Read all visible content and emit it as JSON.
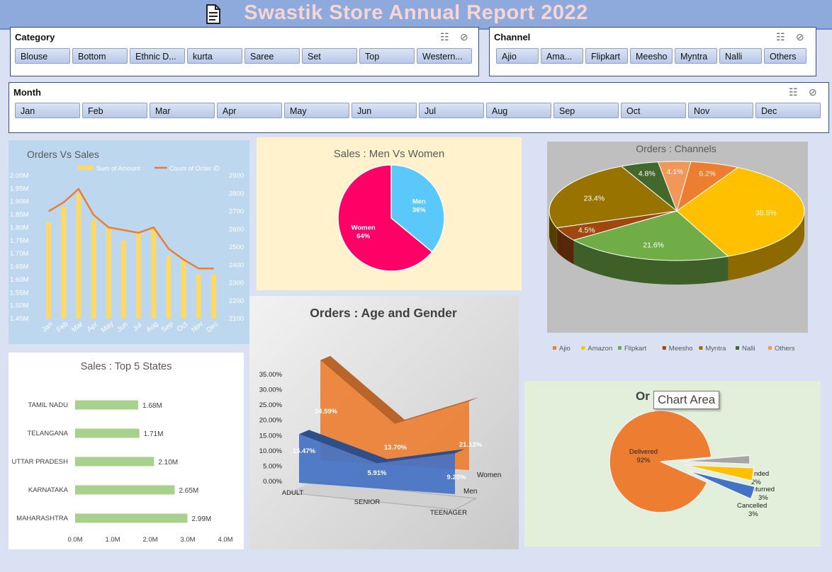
{
  "header": {
    "title": "Swastik Store Annual Report 2022"
  },
  "slicers": {
    "category": {
      "label": "Category",
      "items": [
        "Blouse",
        "Bottom",
        "Ethnic D...",
        "kurta",
        "Saree",
        "Set",
        "Top",
        "Western..."
      ]
    },
    "channel": {
      "label": "Channel",
      "items": [
        "Ajio",
        "Ama...",
        "Flipkart",
        "Meesho",
        "Myntra",
        "Nalli",
        "Others"
      ]
    },
    "month": {
      "label": "Month",
      "items": [
        "Jan",
        "Feb",
        "Mar",
        "Apr",
        "May",
        "Jun",
        "Jul",
        "Aug",
        "Sep",
        "Oct",
        "Nov",
        "Dec"
      ]
    }
  },
  "tooltip": "Chart Area",
  "chart_data": [
    {
      "type": "bar",
      "title": "Orders Vs  Sales",
      "categories": [
        "Jan",
        "Feb",
        "Mar",
        "Apr",
        "May",
        "Jun",
        "Jul",
        "Aug",
        "Sep",
        "Oct",
        "Nov",
        "Dec"
      ],
      "series": [
        {
          "name": "Sum of Amount",
          "kind": "bar",
          "axis": "left",
          "values": [
            1.82,
            1.88,
            1.93,
            1.83,
            1.8,
            1.75,
            1.78,
            1.8,
            1.69,
            1.67,
            1.62,
            1.62
          ],
          "color": "#ffd966"
        },
        {
          "name": "Count of Order ID",
          "kind": "line",
          "axis": "right",
          "values": [
            2700,
            2750,
            2825,
            2680,
            2610,
            2595,
            2580,
            2610,
            2490,
            2430,
            2380,
            2380
          ],
          "color": "#ed7d31"
        }
      ],
      "yticks_left": [
        "1.45M",
        "1.50M",
        "1.55M",
        "1.60M",
        "1.65M",
        "1.70M",
        "1.75M",
        "1.80M",
        "1.85M",
        "1.90M",
        "1.95M",
        "2.00M"
      ],
      "yticks_right": [
        "2100",
        "2200",
        "2300",
        "2400",
        "2500",
        "2600",
        "2700",
        "2800",
        "2900"
      ],
      "ylim_left": [
        1.45,
        2.0
      ],
      "ylim_right": [
        2100,
        2900
      ]
    },
    {
      "type": "pie",
      "title": "Sales : Men Vs Women",
      "slices": [
        {
          "name": "Men",
          "value": 36,
          "label": "36%",
          "color": "#5bc8fb"
        },
        {
          "name": "Women",
          "value": 64,
          "label": "64%",
          "color": "#ff0066"
        }
      ]
    },
    {
      "type": "pie",
      "title": "Orders : Channels",
      "slices": [
        {
          "name": "Ajio",
          "value": 6.2,
          "label": "6.2%",
          "color": "#ed7d31"
        },
        {
          "name": "Amazon",
          "value": 35.5,
          "label": "35.5%",
          "color": "#ffc000"
        },
        {
          "name": "Flipkart",
          "value": 21.6,
          "label": "21.6%",
          "color": "#70ad47"
        },
        {
          "name": "Meesho",
          "value": 4.5,
          "label": "4.5%",
          "color": "#9e480e"
        },
        {
          "name": "Myntra",
          "value": 23.4,
          "label": "23.4%",
          "color": "#997300"
        },
        {
          "name": "Nalli",
          "value": 4.8,
          "label": "4.8%",
          "color": "#43682b"
        },
        {
          "name": "Others",
          "value": 4.1,
          "label": "4.1%",
          "color": "#f1975a"
        }
      ]
    },
    {
      "type": "bar",
      "title": "Sales : Top 5 States",
      "categories": [
        "TAMIL NADU",
        "TELANGANA",
        "UTTAR PRADESH",
        "KARNATAKA",
        "MAHARASHTRA"
      ],
      "values": [
        1.68,
        1.71,
        2.1,
        2.65,
        2.99
      ],
      "labels": [
        "1.68M",
        "1.71M",
        "2.10M",
        "2.65M",
        "2.99M"
      ],
      "xticks": [
        "0.0M",
        "1.0M",
        "2.0M",
        "3.0M",
        "4.0M"
      ],
      "xlim": [
        0,
        4
      ],
      "color": "#a9d18e"
    },
    {
      "type": "area",
      "title": "Orders : Age and Gender",
      "categories": [
        "ADULT",
        "SENIOR",
        "TEENAGER"
      ],
      "series": [
        {
          "name": "Men",
          "values": [
            15.47,
            5.91,
            9.2
          ],
          "labels": [
            "15.47%",
            "5.91%",
            "9.20%"
          ],
          "color": "#4472c4"
        },
        {
          "name": "Women",
          "values": [
            34.59,
            13.7,
            21.13
          ],
          "labels": [
            "34.59%",
            "13.70%",
            "21.13%"
          ],
          "color": "#ed7d31"
        }
      ],
      "yticks": [
        "0.00%",
        "5.00%",
        "10.00%",
        "15.00%",
        "20.00%",
        "25.00%",
        "30.00%",
        "35.00%"
      ],
      "ylim": [
        0,
        35
      ]
    },
    {
      "type": "pie",
      "title": "Or",
      "slices": [
        {
          "name": "Delivered",
          "value": 92,
          "label": "92%",
          "color": "#ed7d31"
        },
        {
          "name": "Refunded",
          "value": 2,
          "label": "2%",
          "color": "#a5a5a5"
        },
        {
          "name": "Returned",
          "value": 3,
          "label": "3%",
          "color": "#ffc000"
        },
        {
          "name": "Cancelled",
          "value": 3,
          "label": "3%",
          "color": "#4472c4"
        }
      ]
    }
  ]
}
